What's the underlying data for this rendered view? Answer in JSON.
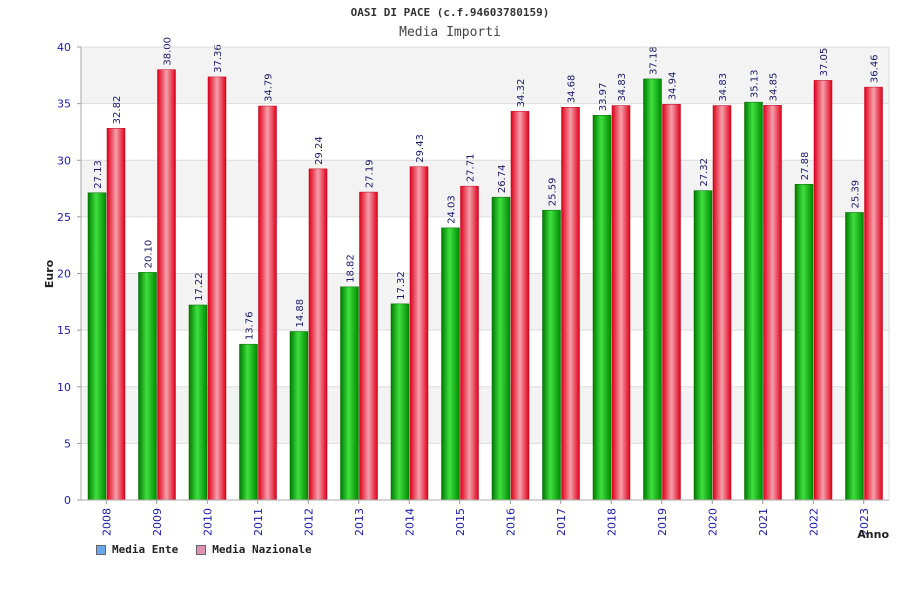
{
  "chart_data": {
    "type": "bar",
    "title": "OASI DI PACE (c.f.94603780159)",
    "subtitle": "Media Importi",
    "xlabel": "Anno",
    "ylabel": "Euro",
    "ylim": [
      0,
      40
    ],
    "yticks": [
      "0",
      "5",
      "10",
      "15",
      "20",
      "25",
      "30",
      "35",
      "40"
    ],
    "categories": [
      "2008",
      "2009",
      "2010",
      "2011",
      "2012",
      "2013",
      "2014",
      "2015",
      "2016",
      "2017",
      "2018",
      "2019",
      "2020",
      "2021",
      "2022",
      "2023"
    ],
    "series": [
      {
        "name": "Media Ente",
        "values": [
          27.13,
          20.1,
          17.22,
          13.76,
          14.88,
          18.82,
          17.32,
          24.03,
          26.74,
          25.59,
          33.97,
          37.18,
          27.32,
          35.13,
          27.88,
          25.39
        ],
        "labels": [
          "27.13",
          "20.10",
          "17.22",
          "13.76",
          "14.88",
          "18.82",
          "17.32",
          "24.03",
          "26.74",
          "25.59",
          "33.97",
          "37.18",
          "27.32",
          "35.13",
          "27.88",
          "25.39"
        ],
        "color": "#00b000",
        "legend_color": "#6aa8e8"
      },
      {
        "name": "Media Nazionale",
        "values": [
          32.82,
          38.0,
          37.36,
          34.79,
          29.24,
          27.19,
          29.43,
          27.71,
          34.32,
          34.68,
          34.83,
          34.94,
          34.83,
          34.85,
          37.05,
          36.46
        ],
        "labels": [
          "32.82",
          "38.00",
          "37.36",
          "34.79",
          "29.24",
          "27.19",
          "29.43",
          "27.71",
          "34.32",
          "34.68",
          "34.83",
          "34.94",
          "34.83",
          "34.85",
          "37.05",
          "36.46"
        ],
        "color": "#e8182c",
        "legend_color": "#e090b0"
      }
    ],
    "grid": true,
    "legend_position": "bottom-left"
  }
}
